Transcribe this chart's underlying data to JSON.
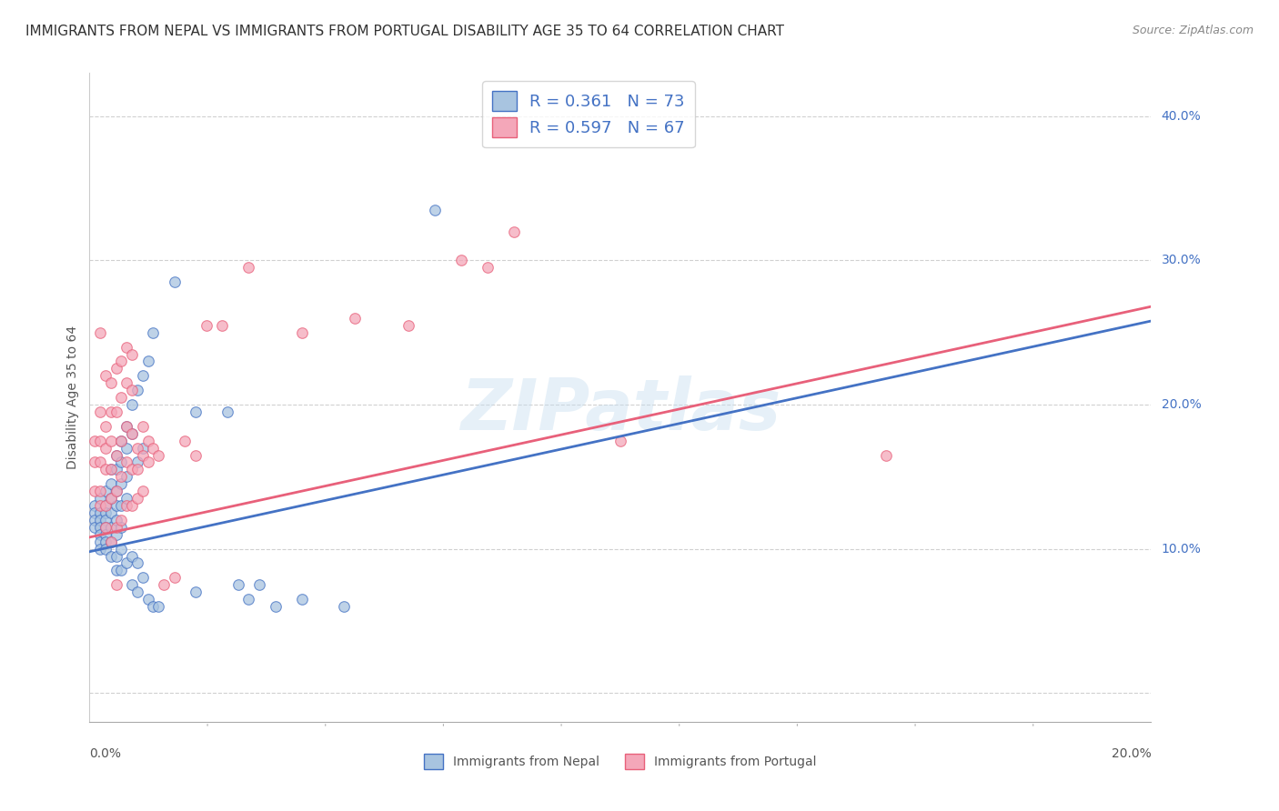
{
  "title": "IMMIGRANTS FROM NEPAL VS IMMIGRANTS FROM PORTUGAL DISABILITY AGE 35 TO 64 CORRELATION CHART",
  "source": "Source: ZipAtlas.com",
  "ylabel": "Disability Age 35 to 64",
  "yticks": [
    0.0,
    0.1,
    0.2,
    0.3,
    0.4
  ],
  "ytick_labels": [
    "",
    "10.0%",
    "20.0%",
    "30.0%",
    "40.0%"
  ],
  "xlim": [
    0.0,
    0.2
  ],
  "ylim": [
    -0.02,
    0.43
  ],
  "nepal_R": 0.361,
  "nepal_N": 73,
  "portugal_R": 0.597,
  "portugal_N": 67,
  "nepal_color": "#a8c4e0",
  "portugal_color": "#f4a7b9",
  "nepal_line_color": "#4472c4",
  "portugal_line_color": "#e8607a",
  "legend_R_color": "#4472c4",
  "nepal_line": {
    "x0": 0.0,
    "y0": 0.098,
    "x1": 0.2,
    "y1": 0.258
  },
  "portugal_line": {
    "x0": 0.0,
    "y0": 0.108,
    "x1": 0.2,
    "y1": 0.268
  },
  "nepal_scatter": [
    [
      0.001,
      0.13
    ],
    [
      0.001,
      0.125
    ],
    [
      0.001,
      0.12
    ],
    [
      0.001,
      0.115
    ],
    [
      0.002,
      0.135
    ],
    [
      0.002,
      0.125
    ],
    [
      0.002,
      0.12
    ],
    [
      0.002,
      0.115
    ],
    [
      0.002,
      0.11
    ],
    [
      0.002,
      0.105
    ],
    [
      0.002,
      0.1
    ],
    [
      0.003,
      0.14
    ],
    [
      0.003,
      0.13
    ],
    [
      0.003,
      0.125
    ],
    [
      0.003,
      0.12
    ],
    [
      0.003,
      0.115
    ],
    [
      0.003,
      0.11
    ],
    [
      0.003,
      0.105
    ],
    [
      0.003,
      0.1
    ],
    [
      0.004,
      0.155
    ],
    [
      0.004,
      0.145
    ],
    [
      0.004,
      0.135
    ],
    [
      0.004,
      0.125
    ],
    [
      0.004,
      0.115
    ],
    [
      0.004,
      0.105
    ],
    [
      0.004,
      0.095
    ],
    [
      0.005,
      0.165
    ],
    [
      0.005,
      0.155
    ],
    [
      0.005,
      0.14
    ],
    [
      0.005,
      0.13
    ],
    [
      0.005,
      0.12
    ],
    [
      0.005,
      0.11
    ],
    [
      0.005,
      0.095
    ],
    [
      0.005,
      0.085
    ],
    [
      0.006,
      0.175
    ],
    [
      0.006,
      0.16
    ],
    [
      0.006,
      0.145
    ],
    [
      0.006,
      0.13
    ],
    [
      0.006,
      0.115
    ],
    [
      0.006,
      0.1
    ],
    [
      0.006,
      0.085
    ],
    [
      0.007,
      0.185
    ],
    [
      0.007,
      0.17
    ],
    [
      0.007,
      0.15
    ],
    [
      0.007,
      0.135
    ],
    [
      0.007,
      0.09
    ],
    [
      0.008,
      0.2
    ],
    [
      0.008,
      0.18
    ],
    [
      0.008,
      0.095
    ],
    [
      0.008,
      0.075
    ],
    [
      0.009,
      0.21
    ],
    [
      0.009,
      0.16
    ],
    [
      0.009,
      0.09
    ],
    [
      0.009,
      0.07
    ],
    [
      0.01,
      0.22
    ],
    [
      0.01,
      0.17
    ],
    [
      0.01,
      0.08
    ],
    [
      0.011,
      0.23
    ],
    [
      0.011,
      0.065
    ],
    [
      0.012,
      0.25
    ],
    [
      0.012,
      0.06
    ],
    [
      0.013,
      0.06
    ],
    [
      0.016,
      0.285
    ],
    [
      0.02,
      0.195
    ],
    [
      0.02,
      0.07
    ],
    [
      0.026,
      0.195
    ],
    [
      0.028,
      0.075
    ],
    [
      0.03,
      0.065
    ],
    [
      0.032,
      0.075
    ],
    [
      0.035,
      0.06
    ],
    [
      0.04,
      0.065
    ],
    [
      0.048,
      0.06
    ],
    [
      0.065,
      0.335
    ]
  ],
  "portugal_scatter": [
    [
      0.001,
      0.175
    ],
    [
      0.001,
      0.16
    ],
    [
      0.001,
      0.14
    ],
    [
      0.002,
      0.25
    ],
    [
      0.002,
      0.195
    ],
    [
      0.002,
      0.175
    ],
    [
      0.002,
      0.16
    ],
    [
      0.002,
      0.14
    ],
    [
      0.002,
      0.13
    ],
    [
      0.003,
      0.22
    ],
    [
      0.003,
      0.185
    ],
    [
      0.003,
      0.17
    ],
    [
      0.003,
      0.155
    ],
    [
      0.003,
      0.13
    ],
    [
      0.003,
      0.115
    ],
    [
      0.004,
      0.215
    ],
    [
      0.004,
      0.195
    ],
    [
      0.004,
      0.175
    ],
    [
      0.004,
      0.155
    ],
    [
      0.004,
      0.135
    ],
    [
      0.004,
      0.105
    ],
    [
      0.005,
      0.225
    ],
    [
      0.005,
      0.195
    ],
    [
      0.005,
      0.165
    ],
    [
      0.005,
      0.14
    ],
    [
      0.005,
      0.115
    ],
    [
      0.005,
      0.075
    ],
    [
      0.006,
      0.23
    ],
    [
      0.006,
      0.205
    ],
    [
      0.006,
      0.175
    ],
    [
      0.006,
      0.15
    ],
    [
      0.006,
      0.12
    ],
    [
      0.007,
      0.24
    ],
    [
      0.007,
      0.215
    ],
    [
      0.007,
      0.185
    ],
    [
      0.007,
      0.16
    ],
    [
      0.007,
      0.13
    ],
    [
      0.008,
      0.235
    ],
    [
      0.008,
      0.21
    ],
    [
      0.008,
      0.18
    ],
    [
      0.008,
      0.155
    ],
    [
      0.008,
      0.13
    ],
    [
      0.009,
      0.17
    ],
    [
      0.009,
      0.155
    ],
    [
      0.009,
      0.135
    ],
    [
      0.01,
      0.185
    ],
    [
      0.01,
      0.165
    ],
    [
      0.01,
      0.14
    ],
    [
      0.011,
      0.175
    ],
    [
      0.011,
      0.16
    ],
    [
      0.012,
      0.17
    ],
    [
      0.013,
      0.165
    ],
    [
      0.014,
      0.075
    ],
    [
      0.016,
      0.08
    ],
    [
      0.018,
      0.175
    ],
    [
      0.02,
      0.165
    ],
    [
      0.022,
      0.255
    ],
    [
      0.025,
      0.255
    ],
    [
      0.03,
      0.295
    ],
    [
      0.04,
      0.25
    ],
    [
      0.05,
      0.26
    ],
    [
      0.06,
      0.255
    ],
    [
      0.07,
      0.3
    ],
    [
      0.075,
      0.295
    ],
    [
      0.08,
      0.32
    ],
    [
      0.1,
      0.175
    ],
    [
      0.15,
      0.165
    ]
  ],
  "watermark": "ZIPatlas",
  "background_color": "#ffffff",
  "grid_color": "#d0d0d0",
  "grid_style": "--"
}
